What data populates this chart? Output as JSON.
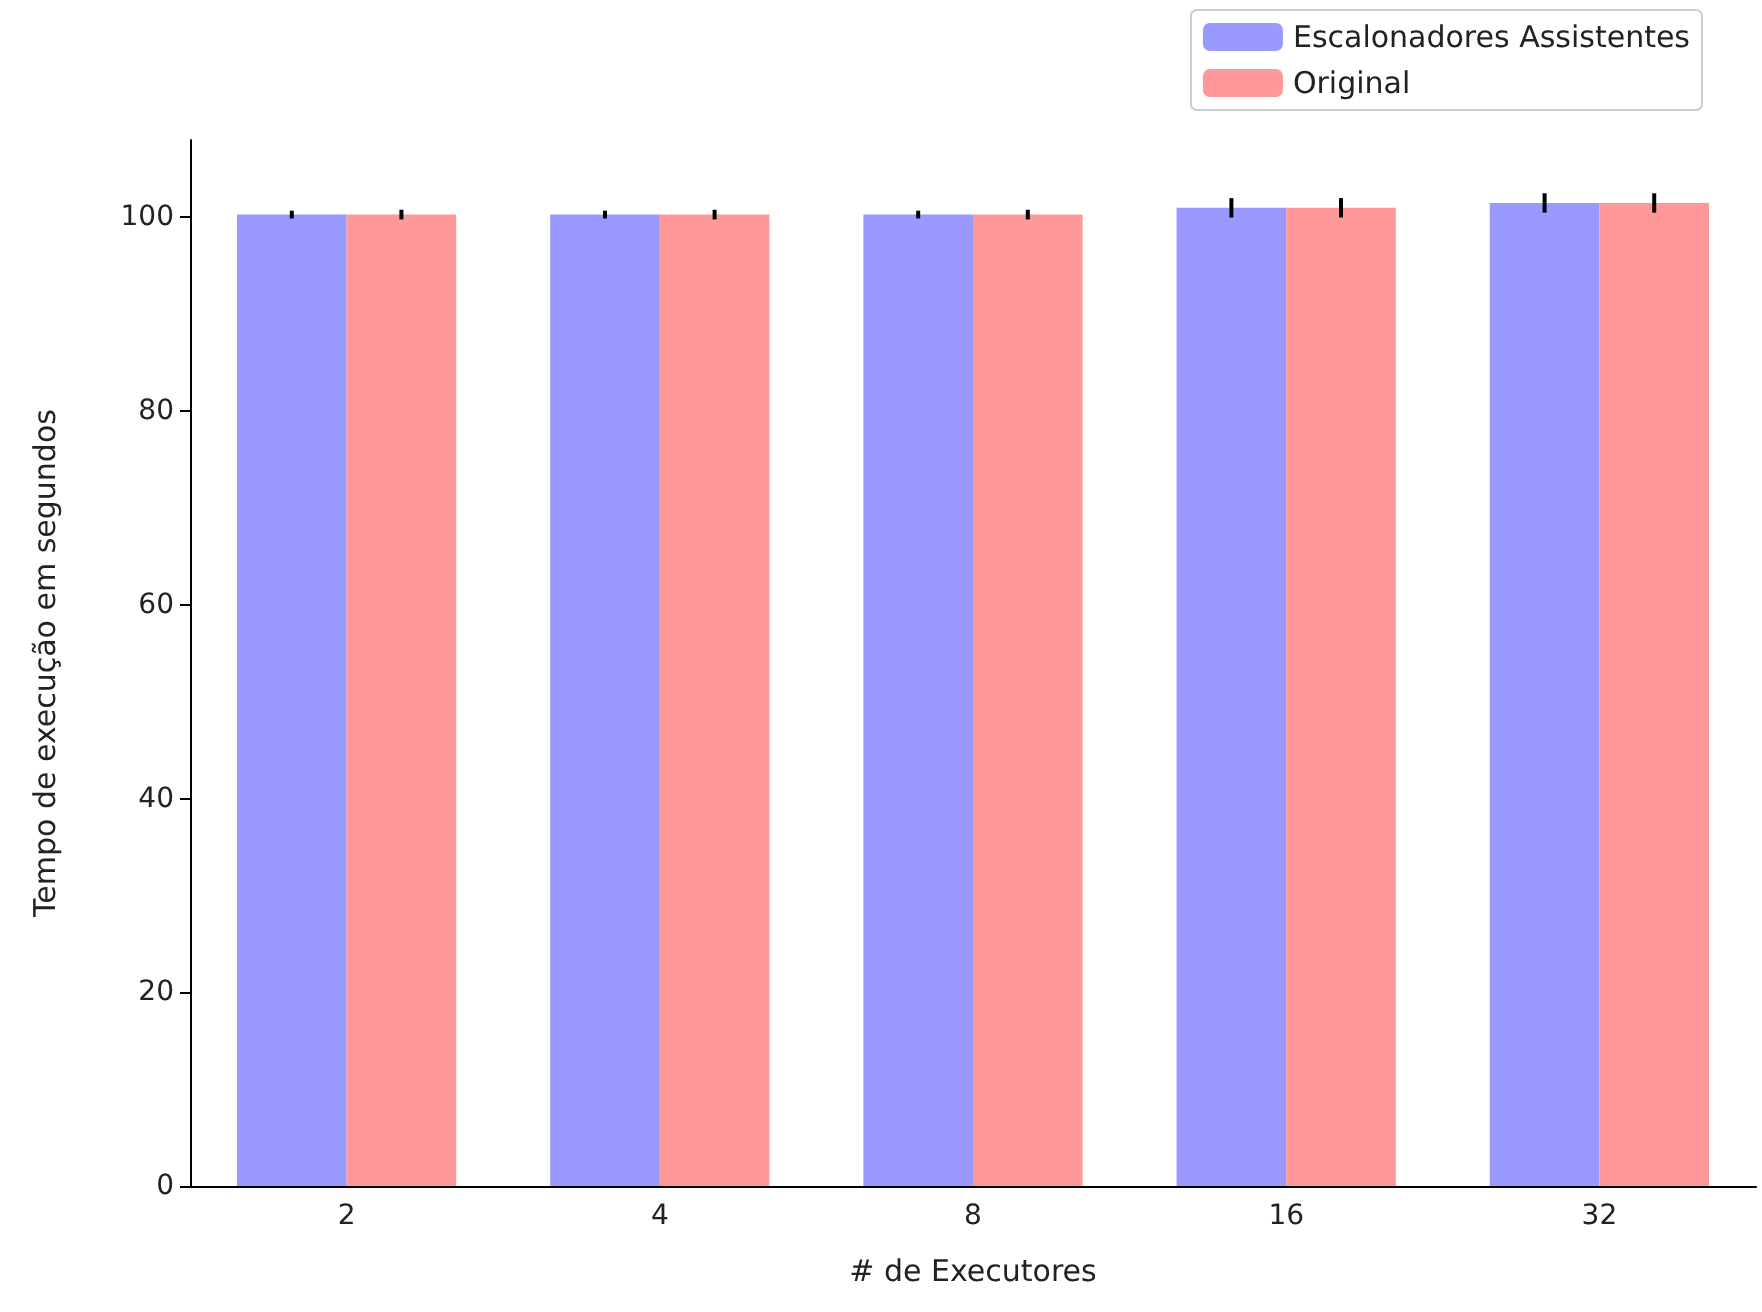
{
  "chart_data": {
    "type": "bar",
    "xlabel": "# de Executores",
    "ylabel": "Tempo de execução em segundos",
    "categories": [
      "2",
      "4",
      "8",
      "16",
      "32"
    ],
    "series": [
      {
        "name": "Escalonadores Assistentes",
        "color": "#9999ff",
        "values": [
          100.3,
          100.3,
          100.3,
          101,
          101.5
        ],
        "errors": [
          0.4,
          0.4,
          0.4,
          1,
          1
        ]
      },
      {
        "name": "Original",
        "color": "#ff9999",
        "values": [
          100.3,
          100.3,
          100.3,
          101,
          101.5
        ],
        "errors": [
          0.5,
          0.5,
          0.5,
          1,
          1
        ]
      }
    ],
    "ylim": [
      0,
      108
    ],
    "yticks": [
      0,
      20,
      40,
      60,
      80,
      100
    ],
    "grid": false,
    "legend": "top right"
  }
}
